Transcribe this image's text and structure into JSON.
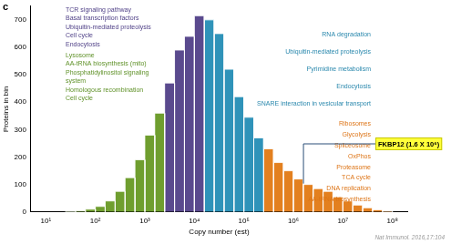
{
  "chart_data": {
    "type": "histogram",
    "panel_label": "c",
    "xlabel": "Copy number (est)",
    "ylabel": "Proteins in bin",
    "source": "Nat Immunol. 2016,17:104",
    "bins": [
      25,
      40,
      63,
      100,
      158,
      251,
      398,
      631,
      1000,
      1585,
      2512,
      3981,
      6310,
      10000,
      15849,
      25119,
      39811,
      63096,
      100000,
      158489,
      251189,
      398107,
      630957,
      1000000,
      1584893,
      2511886,
      3981072,
      6309573,
      10000000,
      15848932,
      25118864,
      39810717,
      63095734,
      100000000
    ],
    "counts": [
      2,
      4,
      10,
      20,
      40,
      75,
      125,
      190,
      280,
      360,
      470,
      590,
      640,
      715,
      700,
      650,
      520,
      420,
      345,
      270,
      230,
      180,
      150,
      120,
      100,
      85,
      75,
      55,
      40,
      25,
      15,
      8,
      3
    ],
    "colors": [
      "#6f9e2f",
      "#6f9e2f",
      "#6f9e2f",
      "#6f9e2f",
      "#6f9e2f",
      "#6f9e2f",
      "#6f9e2f",
      "#6f9e2f",
      "#6f9e2f",
      "#6f9e2f",
      "#5a4a8e",
      "#5a4a8e",
      "#5a4a8e",
      "#5a4a8e",
      "#2f93b9",
      "#2f93b9",
      "#2f93b9",
      "#2f93b9",
      "#2f93b9",
      "#2f93b9",
      "#e3801f",
      "#e3801f",
      "#e3801f",
      "#e3801f",
      "#e3801f",
      "#e3801f",
      "#e3801f",
      "#e3801f",
      "#e3801f",
      "#e3801f",
      "#e3801f",
      "#e3801f",
      "#e3801f"
    ],
    "log": "x",
    "grid": false,
    "xlim": [
      5,
      200000000
    ],
    "xticks": [
      {
        "value": 10,
        "label": "10¹"
      },
      {
        "value": 100,
        "label": "10²"
      },
      {
        "value": 1000,
        "label": "10³"
      },
      {
        "value": 10000,
        "label": "10⁴"
      },
      {
        "value": 100000,
        "label": "10⁵"
      },
      {
        "value": 1000000,
        "label": "10⁶"
      },
      {
        "value": 10000000,
        "label": "10⁷"
      },
      {
        "value": 100000000,
        "label": "10⁸"
      }
    ],
    "ylim": [
      0,
      750
    ],
    "yticks": [
      0,
      100,
      200,
      300,
      400,
      500,
      600,
      700
    ],
    "annotations": [
      {
        "color": "#4e3f86",
        "lines": [
          "TCR signaling pathway",
          "Basal transcription factors",
          "Ubiquitin-mediated proteolysis",
          "Cell cycle",
          "Endocytosis"
        ]
      },
      {
        "color": "#5f9128",
        "lines": [
          "Lysosome",
          "AA-tRNA biosynthesis (mito)",
          "Phosphatidylinositol signaling",
          "system",
          "Homologous recombination",
          "Cell cycle"
        ]
      },
      {
        "color": "#2a88ad",
        "lines": [
          "RNA degradation",
          "Ubiquitin-mediated proteolysis",
          "Pyrimidine metabolism",
          "Endocytosis",
          "SNARE interaction in vesicular transport"
        ]
      },
      {
        "color": "#dd7416",
        "lines": [
          "Ribosomes",
          "Glycolysis",
          "Spliceosome",
          "OxPhos",
          "Proteasome",
          "TCA cycle",
          "DNA replication",
          "AA-tRNA biosynthesis"
        ]
      }
    ],
    "callout": {
      "text": "FKBP12 (1.6 X 10⁶)",
      "value": 1600000
    }
  }
}
